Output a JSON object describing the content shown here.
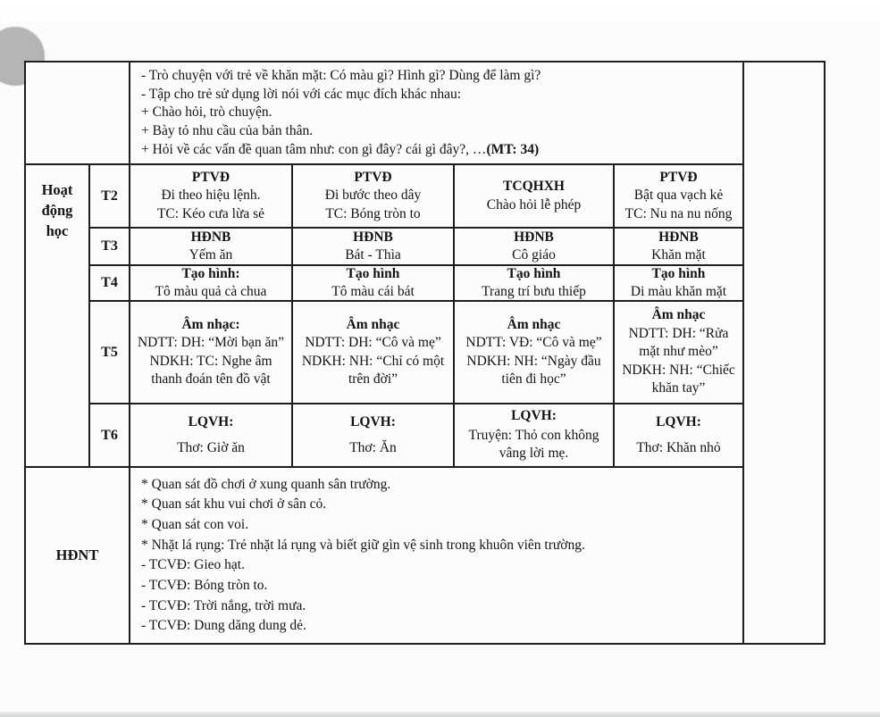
{
  "intro": {
    "lines": [
      "- Trò chuyện với trẻ về khăn mặt: Có màu gì? Hình gì? Dùng để làm gì?",
      "- Tập cho trẻ sử dụng lời nói với các mục đích khác nhau:",
      "+ Chào hỏi, trò chuyện.",
      "+ Bày tỏ nhu cầu của bản thân.",
      "+ Hỏi về các vấn đề quan tâm như: con gì đây? cái gì đây?, …"
    ],
    "mt_label": "(MT: 34)"
  },
  "schedule": {
    "section_label": "Hoạt động học",
    "rows": [
      {
        "day": "T2",
        "cells": [
          {
            "header": "PTVĐ",
            "lines": [
              "Đi theo hiệu lệnh.",
              "TC: Kéo cưa lừa sẻ"
            ]
          },
          {
            "header": "PTVĐ",
            "lines": [
              "Đi bước theo dây",
              "TC: Bóng tròn to"
            ]
          },
          {
            "header": "TCQHXH",
            "lines": [
              "Chào hỏi lễ phép"
            ]
          },
          {
            "header": "PTVĐ",
            "lines": [
              "Bật qua vạch kẻ",
              "TC: Nu na nu nống"
            ]
          }
        ]
      },
      {
        "day": "T3",
        "cells": [
          {
            "header": "HĐNB",
            "lines": [
              "Yếm ăn"
            ]
          },
          {
            "header": "HĐNB",
            "lines": [
              "Bát - Thìa"
            ]
          },
          {
            "header": "HĐNB",
            "lines": [
              "Cô giáo"
            ]
          },
          {
            "header": "HĐNB",
            "lines": [
              "Khăn mặt"
            ]
          }
        ]
      },
      {
        "day": "T4",
        "cells": [
          {
            "header": "Tạo hình:",
            "lines": [
              "Tô màu quả cà chua"
            ]
          },
          {
            "header": "Tạo hình",
            "lines": [
              "Tô màu cái bát"
            ]
          },
          {
            "header": "Tạo hình",
            "lines": [
              "Trang trí bưu thiếp"
            ]
          },
          {
            "header": "Tạo hình",
            "lines": [
              "Di màu khăn mặt"
            ]
          }
        ]
      },
      {
        "day": "T5",
        "cells": [
          {
            "header": "Âm nhạc:",
            "lines": [
              "NDTT: DH: “Mời bạn ăn”",
              "NDKH: TC: Nghe âm thanh đoán tên đồ vật"
            ]
          },
          {
            "header": "Âm nhạc",
            "lines": [
              "NDTT: DH: “Cô và mẹ”",
              "NDKH: NH: “Chỉ có một trên đời”"
            ]
          },
          {
            "header": "Âm nhạc",
            "lines": [
              "NDTT: VĐ: “Cô và mẹ”",
              "NDKH: NH: “Ngày đầu tiên đi học”"
            ]
          },
          {
            "header": "Âm nhạc",
            "lines": [
              "NDTT: DH: “Rửa mặt như mèo”",
              "NDKH: NH: “Chiếc khăn tay”"
            ]
          }
        ]
      },
      {
        "day": "T6",
        "cells": [
          {
            "header": "LQVH:",
            "lines": [
              "Thơ: Giờ ăn"
            ]
          },
          {
            "header": "LQVH:",
            "lines": [
              "Thơ: Ăn"
            ]
          },
          {
            "header": "LQVH:",
            "lines": [
              "Truyện: Thỏ con không vâng lời mẹ."
            ]
          },
          {
            "header": "LQVH:",
            "lines": [
              "Thơ: Khăn nhỏ"
            ]
          }
        ]
      }
    ]
  },
  "hdnt": {
    "label": "HĐNT",
    "lines": [
      "* Quan sát đồ chơi ở xung quanh sân trường.",
      "* Quan sát khu vui chơi ở sân cỏ.",
      "* Quan sát con voi.",
      "* Nhặt lá rụng: Trẻ nhặt lá rụng và biết giữ gìn vệ sinh trong khuôn viên trường.",
      "- TCVĐ: Gieo hạt.",
      "- TCVĐ: Bóng tròn to.",
      "- TCVĐ: Trời nắng, trời mưa.",
      "- TCVĐ: Dung dăng dung dẻ."
    ]
  }
}
